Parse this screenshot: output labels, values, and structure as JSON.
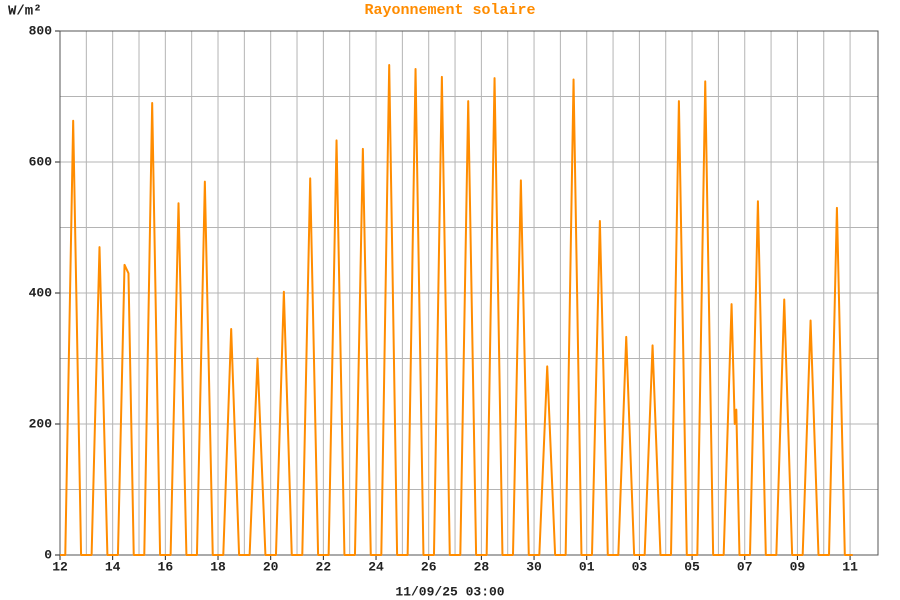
{
  "chart_data": {
    "type": "line",
    "title": "Rayonnement solaire",
    "ylabel": "W/m²",
    "xlabel": "11/09/25 03:00",
    "color": "#ff8c00",
    "grid": true,
    "x": [
      0,
      0.2,
      0.5,
      0.8,
      1.2,
      1.5,
      1.8,
      2.2,
      2.45,
      2.6,
      2.8,
      3.2,
      3.5,
      3.8,
      4.2,
      4.5,
      4.8,
      5.2,
      5.5,
      5.8,
      6.2,
      6.5,
      6.8,
      7.2,
      7.5,
      7.8,
      8.2,
      8.5,
      8.8,
      9.2,
      9.5,
      9.8,
      10.2,
      10.5,
      10.8,
      11.2,
      11.5,
      11.8,
      12.2,
      12.5,
      12.8,
      13.2,
      13.5,
      13.8,
      14.2,
      14.5,
      14.8,
      15.2,
      15.5,
      15.8,
      16.2,
      16.5,
      16.8,
      17.2,
      17.5,
      17.8,
      18.2,
      18.5,
      18.8,
      19.2,
      19.5,
      19.8,
      20.2,
      20.5,
      20.8,
      21.2,
      21.5,
      21.8,
      22.2,
      22.5,
      22.8,
      23.2,
      23.5,
      23.8,
      24.2,
      24.5,
      24.8,
      25.2,
      25.5,
      25.62,
      25.68,
      25.8,
      26.2,
      26.5,
      26.8,
      27.2,
      27.5,
      27.8,
      28.2,
      28.5,
      28.8,
      29.2,
      29.5,
      29.8,
      30.1
    ],
    "values": [
      0,
      0,
      663,
      0,
      0,
      470,
      0,
      0,
      443,
      430,
      0,
      0,
      690,
      0,
      0,
      537,
      0,
      0,
      570,
      0,
      0,
      345,
      0,
      0,
      300,
      0,
      0,
      402,
      0,
      0,
      575,
      0,
      0,
      633,
      0,
      0,
      620,
      0,
      0,
      748,
      0,
      0,
      742,
      0,
      0,
      730,
      0,
      0,
      693,
      0,
      0,
      728,
      0,
      0,
      572,
      0,
      0,
      288,
      0,
      0,
      726,
      0,
      0,
      510,
      0,
      0,
      333,
      0,
      0,
      320,
      0,
      0,
      693,
      0,
      0,
      723,
      0,
      0,
      383,
      200,
      222,
      0,
      0,
      540,
      0,
      0,
      390,
      0,
      0,
      358,
      0,
      0,
      530,
      0,
      0
    ],
    "xlim": [
      0,
      31.06
    ],
    "xticks": [
      {
        "value": 0,
        "label": "12"
      },
      {
        "value": 2,
        "label": "14"
      },
      {
        "value": 4,
        "label": "16"
      },
      {
        "value": 6,
        "label": "18"
      },
      {
        "value": 8,
        "label": "20"
      },
      {
        "value": 10,
        "label": "22"
      },
      {
        "value": 12,
        "label": "24"
      },
      {
        "value": 14,
        "label": "26"
      },
      {
        "value": 16,
        "label": "28"
      },
      {
        "value": 18,
        "label": "30"
      },
      {
        "value": 20,
        "label": "01"
      },
      {
        "value": 22,
        "label": "03"
      },
      {
        "value": 24,
        "label": "05"
      },
      {
        "value": 26,
        "label": "07"
      },
      {
        "value": 28,
        "label": "09"
      },
      {
        "value": 30,
        "label": "11"
      }
    ],
    "xminorticks": [
      1,
      3,
      5,
      7,
      9,
      11,
      13,
      15,
      17,
      19,
      21,
      23,
      25,
      27,
      29
    ],
    "ylim": [
      0,
      800
    ],
    "yticks": [
      0,
      200,
      400,
      600,
      800
    ],
    "yminorticks": [
      100,
      300,
      500,
      700
    ]
  }
}
